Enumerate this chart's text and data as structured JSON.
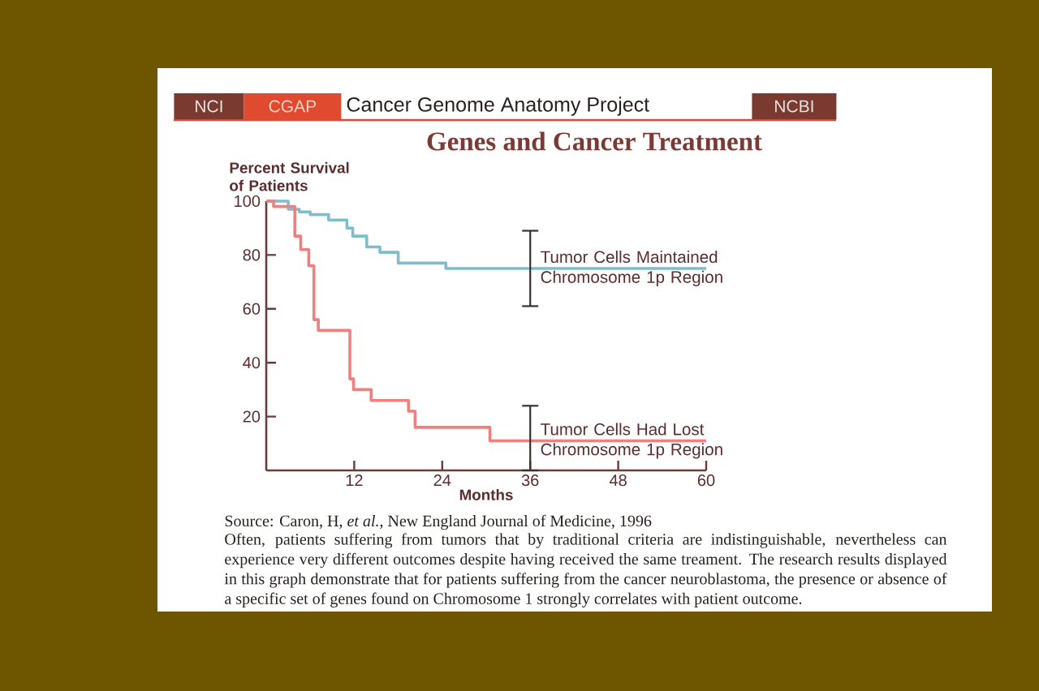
{
  "chart_data": {
    "type": "step",
    "title": "Genes and Cancer Treatment",
    "xlabel": "Months",
    "ylabel": "Percent Survival of Patients",
    "annotations": [
      "NCI",
      "CGAP",
      "Cancer Genome Anatomy Project",
      "NCBI",
      "Source: Caron, H, *et al.*, New England Journal of Medicine, 1996",
      "Often, patients suffering from tumors that by traditional criteria are indistinguishable, nevertheless can experience very different outcomes despite having received the same treament. The research results displayed in this graph demonstrate that for patients suffering from the cancer neuroblastoma, the presence or absence of a specific set of genes found on Chromosome 1 strongly correlates with patient outcome."
    ],
    "xlim": [
      0,
      60
    ],
    "xticks": [
      12,
      24,
      36,
      48,
      60
    ],
    "ylim": [
      0,
      100
    ],
    "yticks": [
      20,
      40,
      60,
      80,
      100
    ],
    "line_style": "solid",
    "series": [
      {
        "name": "Tumor Cells Maintained Chromosome 1p Region",
        "color": "#7fbccc",
        "x": [
          0,
          3,
          4.5,
          6,
          8.5,
          11,
          11.8,
          13.7,
          15.5,
          18,
          24.5,
          36,
          60
        ],
        "values": [
          100,
          97,
          96,
          95,
          93,
          90,
          87,
          83,
          81,
          77,
          75,
          75,
          75
        ],
        "errors": [
          null,
          null,
          null,
          null,
          null,
          null,
          null,
          null,
          null,
          null,
          null,
          14,
          null
        ]
      },
      {
        "name": "Tumor Cells Had Lost Chromosome 1p Region",
        "color": "#f07f7f",
        "x": [
          0,
          1,
          3.9,
          4.7,
          5.8,
          6.5,
          7.1,
          11.4,
          11.9,
          14.3,
          19.4,
          20.3,
          30.5,
          36,
          60
        ],
        "values": [
          100,
          98,
          87,
          82,
          76,
          56,
          52,
          34,
          30,
          26,
          22,
          16,
          11,
          11,
          11
        ],
        "errors": [
          null,
          null,
          null,
          null,
          null,
          null,
          null,
          null,
          null,
          null,
          null,
          null,
          null,
          [
            0,
            24
          ],
          null
        ]
      }
    ]
  }
}
